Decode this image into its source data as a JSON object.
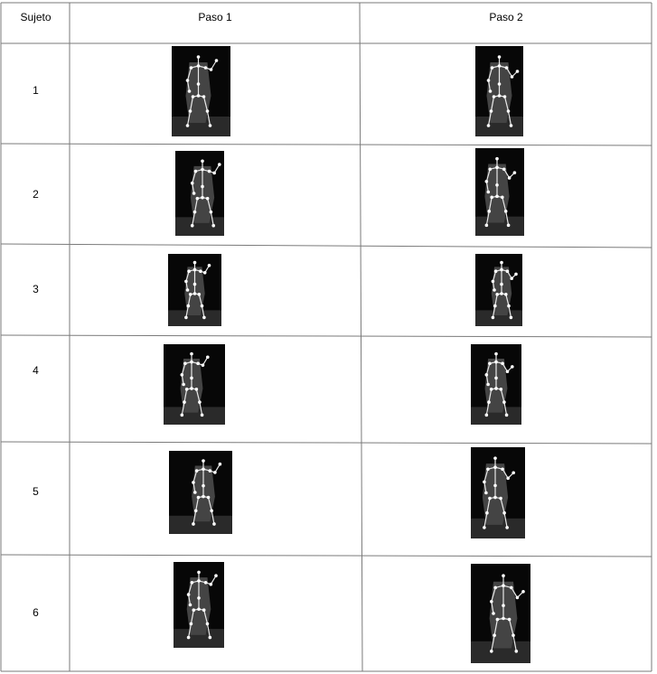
{
  "table": {
    "headers": {
      "subject": "Sujeto",
      "step1": "Paso 1",
      "step2": "Paso 2"
    },
    "rows": [
      {
        "subject": "1"
      },
      {
        "subject": "2"
      },
      {
        "subject": "3"
      },
      {
        "subject": "4"
      },
      {
        "subject": "5"
      },
      {
        "subject": "6"
      }
    ]
  }
}
